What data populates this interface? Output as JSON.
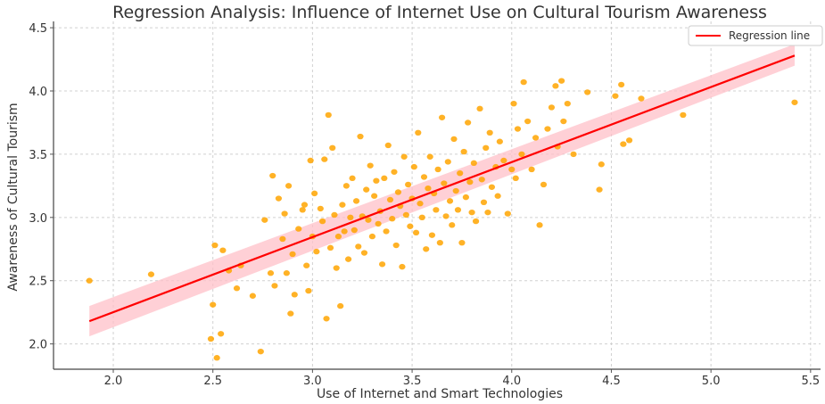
{
  "chart_data": {
    "type": "scatter",
    "title": "Regression Analysis: Influence of Internet Use on Cultural Tourism Awareness",
    "xlabel": "Use of Internet and Smart Technologies",
    "ylabel": "Awareness of Cultural Tourism",
    "xlim": [
      1.7,
      5.55
    ],
    "ylim": [
      1.8,
      4.55
    ],
    "x_ticks": [
      "2.0",
      "2.5",
      "3.0",
      "3.5",
      "4.0",
      "4.5",
      "5.0",
      "5.5"
    ],
    "y_ticks": [
      "2.0",
      "2.5",
      "3.0",
      "3.5",
      "4.0",
      "4.5"
    ],
    "grid": true,
    "legend_position": "top-right",
    "colors": {
      "points": "#ffa500",
      "line": "#ff0000",
      "band": "#ffc0c8"
    },
    "regression": {
      "name": "Regression line",
      "x": [
        1.88,
        5.42
      ],
      "y": [
        2.18,
        4.28
      ],
      "ci_lower": [
        2.06,
        4.2
      ],
      "ci_upper": [
        2.3,
        4.37
      ]
    },
    "points": [
      [
        1.88,
        2.5
      ],
      [
        2.19,
        2.55
      ],
      [
        2.49,
        2.04
      ],
      [
        2.5,
        2.31
      ],
      [
        2.51,
        2.78
      ],
      [
        2.52,
        1.89
      ],
      [
        2.54,
        2.08
      ],
      [
        2.55,
        2.74
      ],
      [
        2.58,
        2.58
      ],
      [
        2.62,
        2.44
      ],
      [
        2.64,
        2.62
      ],
      [
        2.7,
        2.38
      ],
      [
        2.74,
        1.94
      ],
      [
        2.76,
        2.98
      ],
      [
        2.79,
        2.56
      ],
      [
        2.8,
        3.33
      ],
      [
        2.81,
        2.46
      ],
      [
        2.83,
        3.15
      ],
      [
        2.85,
        2.83
      ],
      [
        2.86,
        3.03
      ],
      [
        2.87,
        2.56
      ],
      [
        2.88,
        3.25
      ],
      [
        2.89,
        2.24
      ],
      [
        2.9,
        2.71
      ],
      [
        2.91,
        2.39
      ],
      [
        2.93,
        2.91
      ],
      [
        2.95,
        3.06
      ],
      [
        2.96,
        3.1
      ],
      [
        2.97,
        2.62
      ],
      [
        2.98,
        2.42
      ],
      [
        2.99,
        3.45
      ],
      [
        3.0,
        2.85
      ],
      [
        3.01,
        3.19
      ],
      [
        3.02,
        2.73
      ],
      [
        3.04,
        3.07
      ],
      [
        3.05,
        2.97
      ],
      [
        3.06,
        3.46
      ],
      [
        3.07,
        2.2
      ],
      [
        3.08,
        3.81
      ],
      [
        3.09,
        2.76
      ],
      [
        3.1,
        3.55
      ],
      [
        3.11,
        3.02
      ],
      [
        3.12,
        2.6
      ],
      [
        3.13,
        2.85
      ],
      [
        3.14,
        2.3
      ],
      [
        3.15,
        3.1
      ],
      [
        3.16,
        2.89
      ],
      [
        3.17,
        3.25
      ],
      [
        3.18,
        2.67
      ],
      [
        3.19,
        3.0
      ],
      [
        3.2,
        3.31
      ],
      [
        3.21,
        2.9
      ],
      [
        3.22,
        3.13
      ],
      [
        3.23,
        2.77
      ],
      [
        3.24,
        3.64
      ],
      [
        3.25,
        3.01
      ],
      [
        3.26,
        2.72
      ],
      [
        3.27,
        3.22
      ],
      [
        3.28,
        2.98
      ],
      [
        3.29,
        3.41
      ],
      [
        3.3,
        2.85
      ],
      [
        3.31,
        3.17
      ],
      [
        3.32,
        3.29
      ],
      [
        3.33,
        2.95
      ],
      [
        3.34,
        3.05
      ],
      [
        3.35,
        2.63
      ],
      [
        3.36,
        3.31
      ],
      [
        3.37,
        2.89
      ],
      [
        3.38,
        3.57
      ],
      [
        3.39,
        3.14
      ],
      [
        3.4,
        2.99
      ],
      [
        3.41,
        3.36
      ],
      [
        3.42,
        2.78
      ],
      [
        3.43,
        3.2
      ],
      [
        3.44,
        3.09
      ],
      [
        3.45,
        2.61
      ],
      [
        3.46,
        3.48
      ],
      [
        3.47,
        3.02
      ],
      [
        3.48,
        3.26
      ],
      [
        3.49,
        2.93
      ],
      [
        3.5,
        3.15
      ],
      [
        3.51,
        3.4
      ],
      [
        3.52,
        2.88
      ],
      [
        3.53,
        3.67
      ],
      [
        3.54,
        3.11
      ],
      [
        3.55,
        3.0
      ],
      [
        3.56,
        3.32
      ],
      [
        3.57,
        2.75
      ],
      [
        3.58,
        3.23
      ],
      [
        3.59,
        3.48
      ],
      [
        3.6,
        2.86
      ],
      [
        3.61,
        3.19
      ],
      [
        3.62,
        3.06
      ],
      [
        3.63,
        3.38
      ],
      [
        3.64,
        2.8
      ],
      [
        3.65,
        3.79
      ],
      [
        3.66,
        3.27
      ],
      [
        3.67,
        3.01
      ],
      [
        3.68,
        3.44
      ],
      [
        3.69,
        3.13
      ],
      [
        3.7,
        2.94
      ],
      [
        3.71,
        3.62
      ],
      [
        3.72,
        3.21
      ],
      [
        3.73,
        3.06
      ],
      [
        3.74,
        3.35
      ],
      [
        3.75,
        2.8
      ],
      [
        3.76,
        3.52
      ],
      [
        3.77,
        3.16
      ],
      [
        3.78,
        3.75
      ],
      [
        3.79,
        3.28
      ],
      [
        3.8,
        3.04
      ],
      [
        3.81,
        3.43
      ],
      [
        3.82,
        2.97
      ],
      [
        3.84,
        3.86
      ],
      [
        3.85,
        3.3
      ],
      [
        3.86,
        3.12
      ],
      [
        3.87,
        3.55
      ],
      [
        3.88,
        3.04
      ],
      [
        3.89,
        3.67
      ],
      [
        3.9,
        3.24
      ],
      [
        3.92,
        3.4
      ],
      [
        3.93,
        3.17
      ],
      [
        3.94,
        3.6
      ],
      [
        3.96,
        3.45
      ],
      [
        3.98,
        3.03
      ],
      [
        4.0,
        3.38
      ],
      [
        4.01,
        3.9
      ],
      [
        4.02,
        3.31
      ],
      [
        4.03,
        3.7
      ],
      [
        4.05,
        3.5
      ],
      [
        4.06,
        4.07
      ],
      [
        4.08,
        3.76
      ],
      [
        4.1,
        3.38
      ],
      [
        4.12,
        3.63
      ],
      [
        4.14,
        2.94
      ],
      [
        4.16,
        3.26
      ],
      [
        4.18,
        3.7
      ],
      [
        4.2,
        3.87
      ],
      [
        4.22,
        4.04
      ],
      [
        4.23,
        3.56
      ],
      [
        4.25,
        4.08
      ],
      [
        4.26,
        3.76
      ],
      [
        4.28,
        3.9
      ],
      [
        4.31,
        3.5
      ],
      [
        4.38,
        3.99
      ],
      [
        4.44,
        3.22
      ],
      [
        4.45,
        3.42
      ],
      [
        4.52,
        3.96
      ],
      [
        4.55,
        4.05
      ],
      [
        4.56,
        3.58
      ],
      [
        4.59,
        3.61
      ],
      [
        4.65,
        3.94
      ],
      [
        4.86,
        3.81
      ],
      [
        5.42,
        3.91
      ]
    ]
  }
}
